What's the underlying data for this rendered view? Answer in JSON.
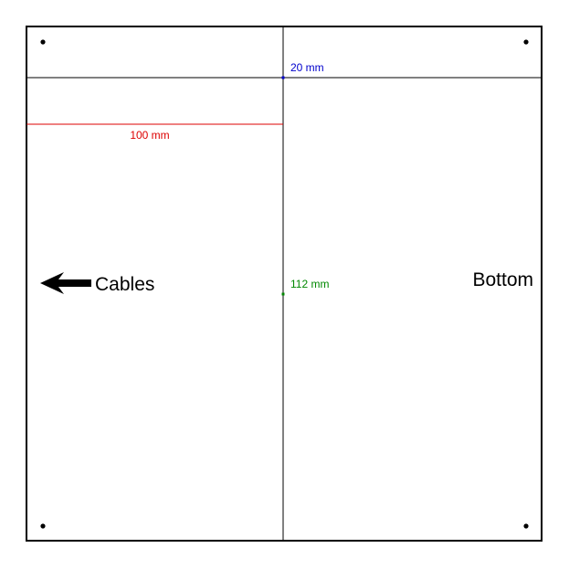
{
  "panel": {
    "labels": {
      "cables": "Cables",
      "bottom": "Bottom"
    },
    "dimensions": [
      {
        "key": "top_offset",
        "value": "20 mm",
        "color": "#0000cc"
      },
      {
        "key": "vertical_guide",
        "value": "112 mm",
        "color": "#008800"
      },
      {
        "key": "horizontal_guide",
        "value": "100 mm",
        "color": "#dd0000"
      }
    ],
    "colors": {
      "outline": "#000000",
      "guide": "#000000"
    },
    "icons": {
      "arrow": "arrow-left-icon",
      "hole": "mounting-hole-icon"
    }
  }
}
